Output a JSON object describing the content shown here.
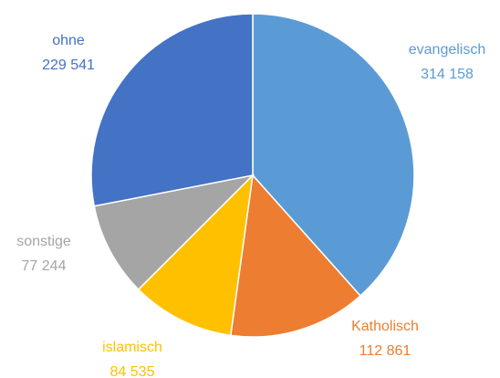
{
  "chart_data": {
    "type": "pie",
    "categories": [
      "evangelisch",
      "Katholisch",
      "islamisch",
      "sonstige",
      "ohne"
    ],
    "values": [
      314158,
      112861,
      84535,
      77244,
      229541
    ],
    "value_labels": [
      "314 158",
      "112 861",
      "84 535",
      "77 244",
      "229 541"
    ],
    "colors": [
      "#5b9bd5",
      "#ed7d31",
      "#ffc000",
      "#a5a5a5",
      "#4472c4"
    ]
  }
}
